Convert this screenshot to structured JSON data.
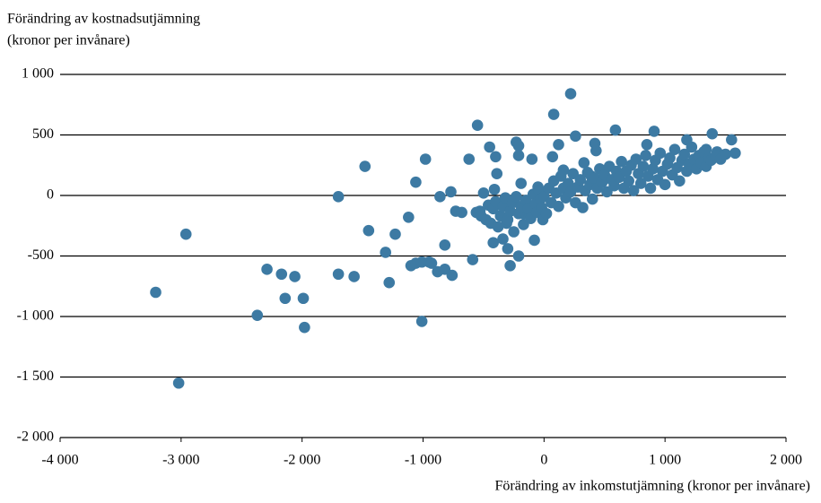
{
  "chart_data": {
    "type": "scatter",
    "ylabel": "Förändring av kostnadsutjämning",
    "ylabel_unit": "(kronor per invånare)",
    "xlabel": "Förändring av inkomstutjämning (kronor per invånare)",
    "color": "#3d7aa3",
    "grid": true,
    "xlim": [
      -4000,
      2000
    ],
    "ylim": [
      -2000,
      1000
    ],
    "xticks": [
      {
        "value": -4000,
        "label": "-4 000"
      },
      {
        "value": -3000,
        "label": "-3 000"
      },
      {
        "value": -2000,
        "label": "-2 000"
      },
      {
        "value": -1000,
        "label": "-1 000"
      },
      0,
      {
        "value": 1000,
        "label": "1 000"
      },
      {
        "value": 2000,
        "label": "2 000"
      }
    ],
    "yticks": [
      {
        "value": -2000,
        "label": "-2 000"
      },
      {
        "value": -1500,
        "label": "-1 500"
      },
      {
        "value": -1000,
        "label": "-1 000"
      },
      -500,
      0,
      500,
      {
        "value": 1000,
        "label": "1 000"
      }
    ],
    "x": [
      -3210,
      -2960,
      -3020,
      -2370,
      -2290,
      -2170,
      -2140,
      -2060,
      -1990,
      -1980,
      -1700,
      -1700,
      -1570,
      -1480,
      -1450,
      -1310,
      -1280,
      -1230,
      -1120,
      -1100,
      -1060,
      -1060,
      -1010,
      -1010,
      -980,
      -950,
      -930,
      -880,
      -860,
      -820,
      -820,
      -770,
      -760,
      -730,
      -680,
      -620,
      -590,
      -550,
      -530,
      -500,
      -450,
      -420,
      -410,
      -400,
      -390,
      -340,
      -310,
      -300,
      -280,
      -230,
      -210,
      -210,
      -210,
      -190,
      -170,
      -100,
      -80,
      -50,
      70,
      80,
      120,
      160,
      220,
      260,
      330,
      390,
      420,
      430,
      590,
      850,
      910,
      1180,
      1340,
      1390,
      1550,
      1580,
      1430,
      -560,
      -520,
      -480,
      -460,
      -440,
      -420,
      -400,
      -380,
      -360,
      -340,
      -320,
      -300,
      -280,
      -260,
      -250,
      -230,
      -210,
      -190,
      -170,
      -150,
      -130,
      -110,
      -90,
      -70,
      -60,
      -40,
      -30,
      -20,
      -10,
      0,
      20,
      40,
      60,
      80,
      100,
      120,
      140,
      160,
      180,
      200,
      220,
      240,
      260,
      280,
      300,
      320,
      340,
      360,
      380,
      400,
      420,
      440,
      460,
      480,
      500,
      520,
      540,
      560,
      580,
      600,
      620,
      640,
      660,
      680,
      700,
      720,
      740,
      760,
      780,
      800,
      820,
      840,
      860,
      880,
      900,
      920,
      940,
      960,
      980,
      1000,
      1020,
      1040,
      1060,
      1080,
      1100,
      1120,
      1140,
      1160,
      1180,
      1200,
      1220,
      1240,
      1260,
      1280,
      1300,
      1320,
      1340,
      1360,
      1380,
      1420,
      1460,
      1500
    ],
    "y": [
      -800,
      -320,
      -1550,
      -990,
      -610,
      -650,
      -850,
      -670,
      -850,
      -1090,
      -10,
      -650,
      -670,
      240,
      -290,
      -470,
      -720,
      -320,
      -180,
      -580,
      110,
      -560,
      -550,
      -1040,
      300,
      -550,
      -560,
      -630,
      -10,
      -410,
      -610,
      30,
      -660,
      -130,
      -140,
      300,
      -530,
      580,
      -130,
      20,
      400,
      -390,
      50,
      320,
      180,
      -360,
      -230,
      -440,
      -580,
      440,
      410,
      330,
      -500,
      100,
      -150,
      300,
      -370,
      70,
      320,
      670,
      420,
      210,
      840,
      490,
      270,
      160,
      430,
      370,
      540,
      420,
      530,
      460,
      380,
      510,
      460,
      350,
      360,
      -140,
      -170,
      -200,
      -80,
      -230,
      -110,
      -50,
      -260,
      -170,
      -90,
      -20,
      -200,
      -130,
      -60,
      -300,
      -10,
      -150,
      -90,
      -240,
      -40,
      -110,
      -190,
      10,
      -70,
      -140,
      40,
      -30,
      -100,
      -200,
      -10,
      -150,
      60,
      -60,
      120,
      20,
      -90,
      160,
      60,
      -20,
      100,
      30,
      180,
      -60,
      70,
      130,
      -100,
      40,
      190,
      90,
      -30,
      140,
      60,
      220,
      110,
      170,
      30,
      240,
      130,
      80,
      200,
      150,
      280,
      60,
      200,
      120,
      250,
      40,
      300,
      180,
      100,
      240,
      330,
      160,
      60,
      220,
      290,
      130,
      350,
      200,
      90,
      260,
      310,
      170,
      380,
      230,
      120,
      290,
      340,
      200,
      260,
      400,
      300,
      220,
      330,
      270,
      360,
      240,
      310,
      290,
      330,
      300,
      340
    ]
  }
}
